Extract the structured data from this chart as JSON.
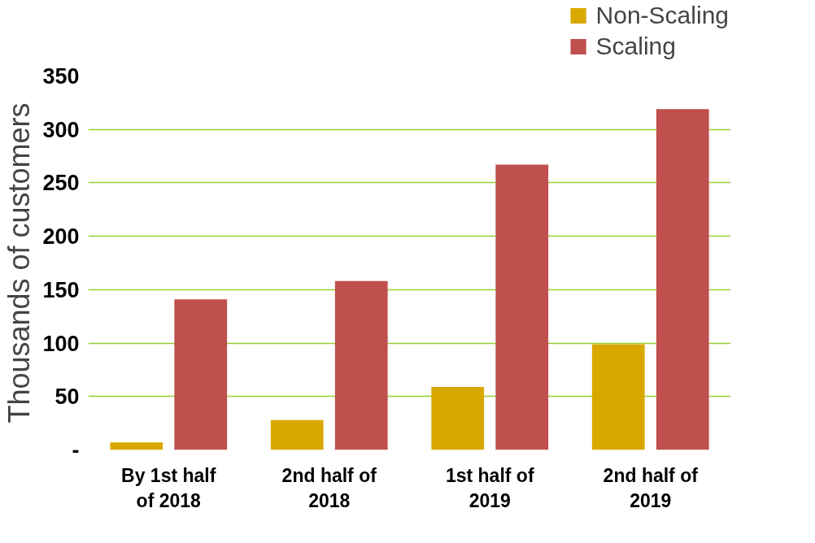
{
  "chart_data": {
    "type": "bar",
    "ylabel": "Thousands of customers",
    "categories": [
      "By 1st half\nof 2018",
      "2nd half of\n2018",
      "1st half of\n2019",
      "2nd half of\n2019"
    ],
    "series": [
      {
        "name": "Non-Scaling",
        "color": "#d9a800",
        "values": [
          7,
          28,
          59,
          99
        ]
      },
      {
        "name": "Scaling",
        "color": "#c0504d",
        "values": [
          141,
          158,
          267,
          319
        ]
      }
    ],
    "ylim": [
      0,
      350
    ],
    "yticks": [
      {
        "value": 0,
        "label": "-"
      },
      50,
      100,
      150,
      200,
      250,
      300,
      350
    ],
    "grid": "y",
    "legend": "top right"
  }
}
